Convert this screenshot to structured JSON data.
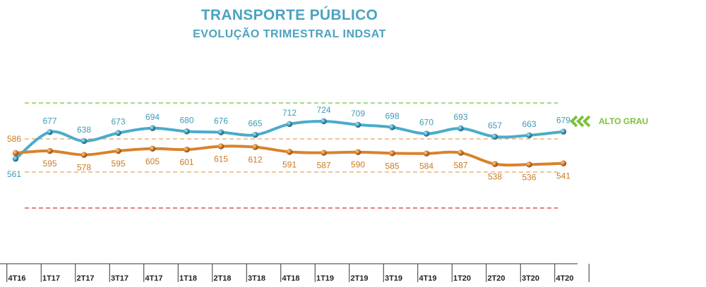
{
  "title": "TRANSPORTE PÚBLICO",
  "subtitle": "EVOLUÇÃO TRIMESTRAL INDSAT",
  "reference_label": "ALTO GRAU",
  "colors": {
    "title": "#4aa3bf",
    "series_blue": "#4aaccc",
    "series_orange": "#d9822b",
    "ref_green": "#8fc95a",
    "ref_orange": "#e3a265",
    "ref_red": "#e0534a",
    "arrows": "#7dc23a"
  },
  "chart_data": {
    "type": "line",
    "categories": [
      "4T16",
      "1T17",
      "2T17",
      "3T17",
      "4T17",
      "1T18",
      "2T18",
      "3T18",
      "4T18",
      "1T19",
      "2T19",
      "3T19",
      "4T19",
      "1T20",
      "2T20",
      "3T20",
      "4T20"
    ],
    "series": [
      {
        "values": [
          561,
          677,
          638,
          673,
          694,
          680,
          676,
          665,
          712,
          724,
          709,
          698,
          670,
          693,
          657,
          663,
          679
        ]
      },
      {
        "values": [
          586,
          595,
          578,
          595,
          605,
          601,
          615,
          612,
          591,
          587,
          590,
          585,
          584,
          587,
          538,
          536,
          541
        ]
      }
    ],
    "reference_lines": [
      {
        "color": "green",
        "style": "dashed"
      },
      {
        "color": "light-orange",
        "style": "dashed"
      },
      {
        "color": "light-orange",
        "style": "dashed"
      },
      {
        "color": "red",
        "style": "dashed"
      }
    ],
    "grid": false,
    "smooth": true
  }
}
